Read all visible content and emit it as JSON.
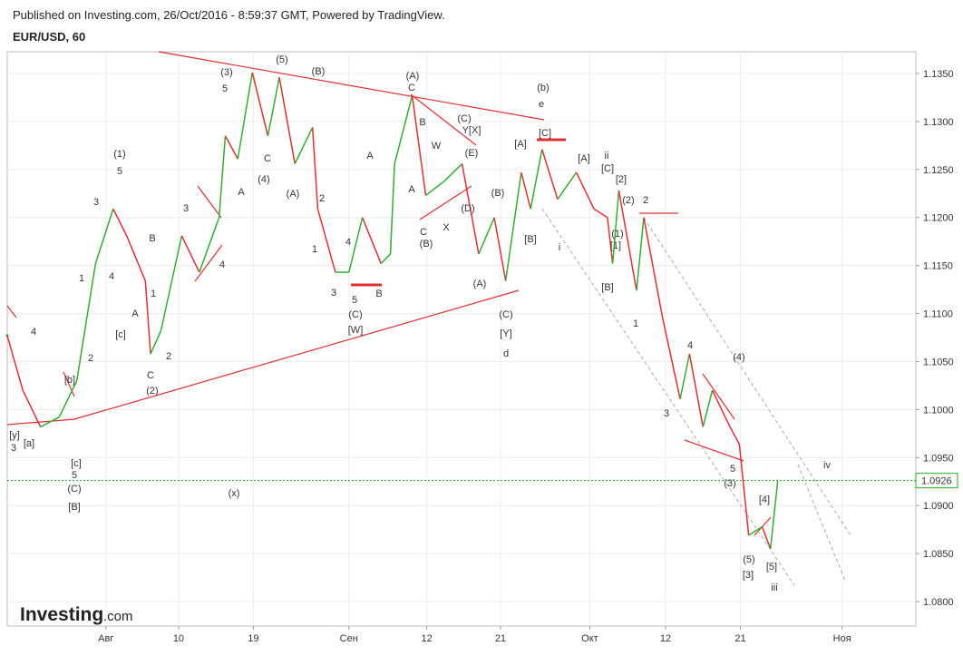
{
  "header": {
    "published": "Published on Investing.com, 26/Oct/2016 - 8:59:37 GMT, Powered by TradingView.",
    "symbol": "EUR/USD, 60"
  },
  "logo": {
    "brand": "Investing",
    "suffix": ".com"
  },
  "chart_data": {
    "type": "line",
    "up_color": "#2fae2f",
    "down_color": "#e03030",
    "x": [
      -9.5,
      -8.0,
      -6.3,
      -4.5,
      -2.8,
      -1.0,
      0.7,
      2.0,
      3.8,
      4.3,
      5.3,
      7.3,
      9.0,
      10.9,
      11.5,
      12.7,
      14.1,
      15.6,
      16.7,
      18.2,
      19.9,
      20.4,
      22.1,
      23.4,
      24.7,
      26.5,
      27.4,
      27.8,
      29.5,
      30.8,
      32.6,
      34.3,
      35.9,
      37.4,
      38.5,
      40.0,
      40.9,
      42.0,
      43.5,
      45.3,
      47.0,
      48.3,
      48.8,
      49.4,
      51.1,
      51.8,
      53.6,
      55.3,
      56.2,
      57.5,
      58.4,
      60.1,
      61.0,
      61.9,
      63.2,
      64.0,
      64.7
    ],
    "values": [
      1.1077,
      1.102,
      1.0982,
      1.0992,
      1.103,
      1.1152,
      1.1209,
      1.1181,
      1.1134,
      1.1058,
      1.1082,
      1.1181,
      1.1143,
      1.12,
      1.1285,
      1.1261,
      1.1351,
      1.1285,
      1.1346,
      1.1256,
      1.1294,
      1.1209,
      1.1143,
      1.1143,
      1.12,
      1.1152,
      1.1162,
      1.1256,
      1.1327,
      1.1223,
      1.1238,
      1.1256,
      1.1162,
      1.12,
      1.1134,
      1.1247,
      1.1209,
      1.1271,
      1.1219,
      1.1247,
      1.1209,
      1.12,
      1.1152,
      1.1228,
      1.1124,
      1.12,
      1.1096,
      1.1011,
      1.1058,
      1.0982,
      1.102,
      1.0982,
      1.0964,
      1.0869,
      1.0878,
      1.0855,
      1.0926
    ],
    "xlim": [
      -9.5,
      78.0
    ],
    "ylim": [
      1.07745,
      1.13727
    ],
    "xticks": [
      {
        "value": 0.0,
        "label": "Авг"
      },
      {
        "value": 7.0,
        "label": "10"
      },
      {
        "value": 14.2,
        "label": "19"
      },
      {
        "value": 23.4,
        "label": "Сен"
      },
      {
        "value": 30.9,
        "label": "12"
      },
      {
        "value": 38.0,
        "label": "21"
      },
      {
        "value": 46.6,
        "label": "Окт"
      },
      {
        "value": 53.9,
        "label": "12"
      },
      {
        "value": 61.1,
        "label": "21"
      },
      {
        "value": 70.9,
        "label": "Ноя"
      }
    ],
    "yticks": [
      {
        "value": 1.08,
        "label": "1.0800"
      },
      {
        "value": 1.085,
        "label": "1.0850"
      },
      {
        "value": 1.09,
        "label": "1.0900"
      },
      {
        "value": 1.095,
        "label": "1.0950"
      },
      {
        "value": 1.1,
        "label": "1.1000"
      },
      {
        "value": 1.105,
        "label": "1.1050"
      },
      {
        "value": 1.11,
        "label": "1.1100"
      },
      {
        "value": 1.115,
        "label": "1.1150"
      },
      {
        "value": 1.12,
        "label": "1.1200"
      },
      {
        "value": 1.125,
        "label": "1.1250"
      },
      {
        "value": 1.13,
        "label": "1.1300"
      },
      {
        "value": 1.135,
        "label": "1.1350"
      }
    ],
    "grid": true,
    "last_price": {
      "value": 1.0926,
      "label": "1.0926",
      "color": "#1fae1f"
    },
    "annotations": [
      "4",
      "3",
      "[a]",
      "[y]",
      "[b]",
      "[c]",
      "5",
      "(C)",
      "[B]",
      "2",
      "1",
      "3",
      "4",
      "5",
      "(1)",
      "[c]",
      "A",
      "B",
      "1",
      "C",
      "(2)",
      "2",
      "3",
      "4",
      "A",
      "5",
      "(3)",
      "C",
      "(4)",
      "(5)",
      "(A)",
      "(B)",
      "2",
      "1",
      "3",
      "4",
      "5",
      "(C)",
      "[W]",
      "A",
      "B",
      "(x)",
      "(A)",
      "C",
      "B",
      "A",
      "W",
      "C",
      "(B)",
      "X",
      "(C)",
      "Y[X]",
      "(E)",
      "(D)",
      "(B)",
      "(A)",
      "(C)",
      "[Y]",
      "d",
      "(b)",
      "e",
      "[C]",
      "[A]",
      "[B]",
      "i",
      "[A]",
      "ii",
      "[C]",
      "[2]",
      "(2)",
      "2",
      "(1)",
      "[1]",
      "[B]",
      "1",
      "4",
      "3",
      "(4)",
      "5",
      "(3)",
      "[4]",
      "(5)",
      "[3]",
      "[5]",
      "iii",
      "iv"
    ]
  }
}
